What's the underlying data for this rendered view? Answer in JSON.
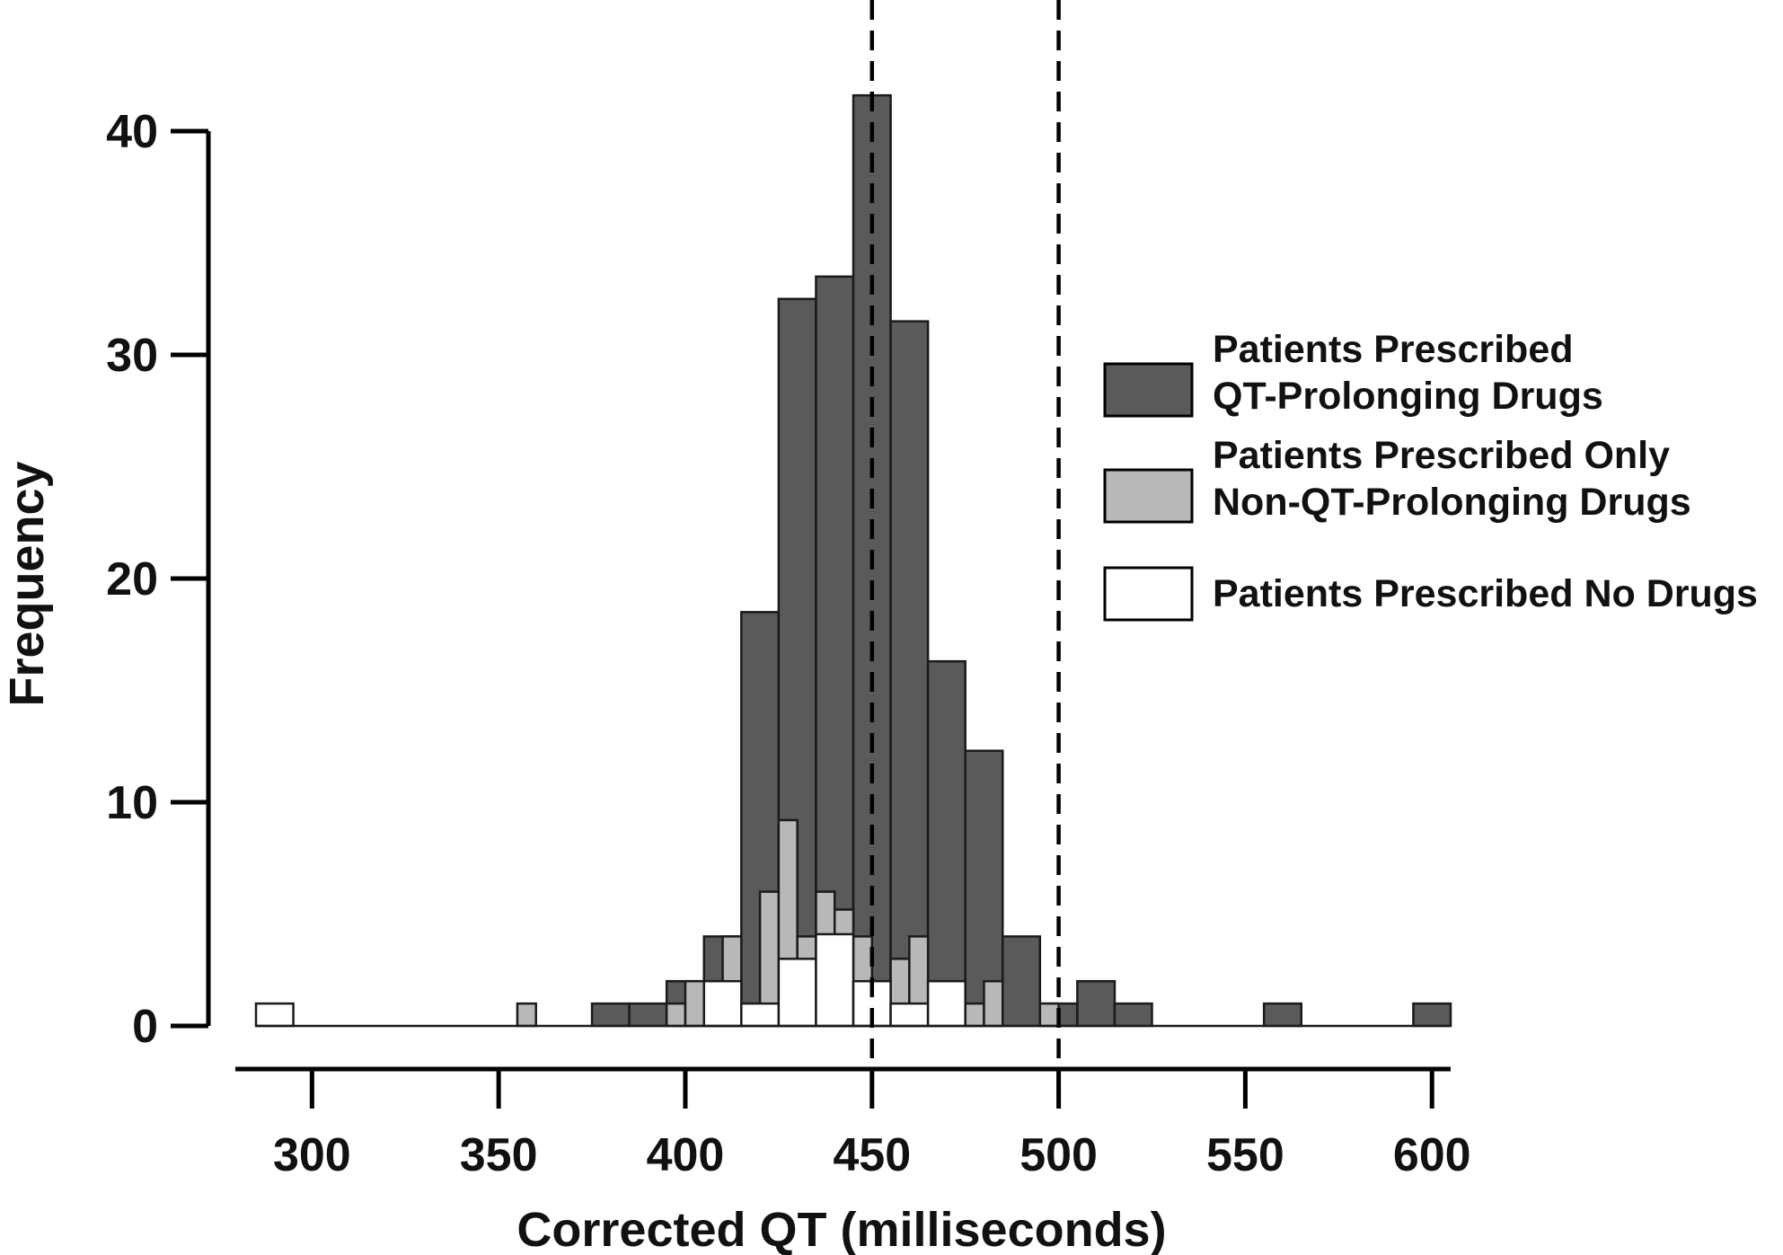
{
  "chart_data": {
    "type": "bar",
    "subtype": "stacked-histogram",
    "title": "",
    "xlabel": "Corrected QT (milliseconds)",
    "ylabel": "Frequency",
    "xlim": [
      285,
      605
    ],
    "ylim": [
      0,
      42
    ],
    "x_ticks": [
      300,
      350,
      400,
      450,
      500,
      550,
      600
    ],
    "y_ticks": [
      0,
      10,
      20,
      30,
      40
    ],
    "bin_width": 10,
    "bins_start": [
      285,
      295,
      305,
      315,
      325,
      335,
      345,
      355,
      365,
      375,
      385,
      395,
      405,
      415,
      425,
      435,
      445,
      455,
      465,
      475,
      485,
      495,
      505,
      515,
      525,
      535,
      545,
      555,
      565,
      575,
      585,
      595
    ],
    "layers": [
      {
        "name": "Patients Prescribed QT-Prolonging Drugs",
        "color": "#5a5a5a",
        "bin_width": 10,
        "bins": [
          {
            "start": 375,
            "value": 1
          },
          {
            "start": 385,
            "value": 1
          },
          {
            "start": 395,
            "value": 2
          },
          {
            "start": 405,
            "value": 4
          },
          {
            "start": 415,
            "value": 18.5
          },
          {
            "start": 425,
            "value": 32.5
          },
          {
            "start": 435,
            "value": 33.5
          },
          {
            "start": 445,
            "value": 41.6
          },
          {
            "start": 455,
            "value": 31.5
          },
          {
            "start": 465,
            "value": 16.3
          },
          {
            "start": 475,
            "value": 12.3
          },
          {
            "start": 485,
            "value": 4
          },
          {
            "start": 495,
            "value": 1
          },
          {
            "start": 505,
            "value": 2
          },
          {
            "start": 515,
            "value": 1
          },
          {
            "start": 555,
            "value": 1
          },
          {
            "start": 595,
            "value": 1
          }
        ]
      },
      {
        "name": "Patients Prescribed Only Non-QT-Prolonging Drugs",
        "color": "#b8b8b8",
        "bin_width": 5,
        "bins": [
          {
            "start": 355,
            "value": 1
          },
          {
            "start": 395,
            "value": 1
          },
          {
            "start": 400,
            "value": 2
          },
          {
            "start": 405,
            "value": 2
          },
          {
            "start": 410,
            "value": 4
          },
          {
            "start": 420,
            "value": 6
          },
          {
            "start": 425,
            "value": 9.2
          },
          {
            "start": 430,
            "value": 4
          },
          {
            "start": 435,
            "value": 6
          },
          {
            "start": 440,
            "value": 5.2
          },
          {
            "start": 445,
            "value": 4
          },
          {
            "start": 455,
            "value": 3
          },
          {
            "start": 460,
            "value": 4
          },
          {
            "start": 475,
            "value": 1
          },
          {
            "start": 480,
            "value": 2
          },
          {
            "start": 495,
            "value": 1
          }
        ]
      },
      {
        "name": "Patients Prescribed No Drugs",
        "color": "#ffffff",
        "bin_width": 10,
        "bins": [
          {
            "start": 285,
            "value": 1
          },
          {
            "start": 405,
            "value": 2
          },
          {
            "start": 415,
            "value": 1
          },
          {
            "start": 425,
            "value": 3
          },
          {
            "start": 435,
            "value": 4.1
          },
          {
            "start": 445,
            "value": 2
          },
          {
            "start": 455,
            "value": 1
          },
          {
            "start": 465,
            "value": 2
          }
        ]
      }
    ],
    "reference_lines": [
      450,
      500
    ],
    "legend": {
      "position": "right",
      "entries": [
        {
          "lines": [
            "Patients Prescribed",
            "QT-Prolonging Drugs"
          ],
          "color": "#5a5a5a"
        },
        {
          "lines": [
            "Patients Prescribed Only",
            "Non-QT-Prolonging Drugs"
          ],
          "color": "#b8b8b8"
        },
        {
          "lines": [
            "Patients Prescribed No Drugs"
          ],
          "color": "#ffffff"
        }
      ]
    },
    "grid": false
  }
}
